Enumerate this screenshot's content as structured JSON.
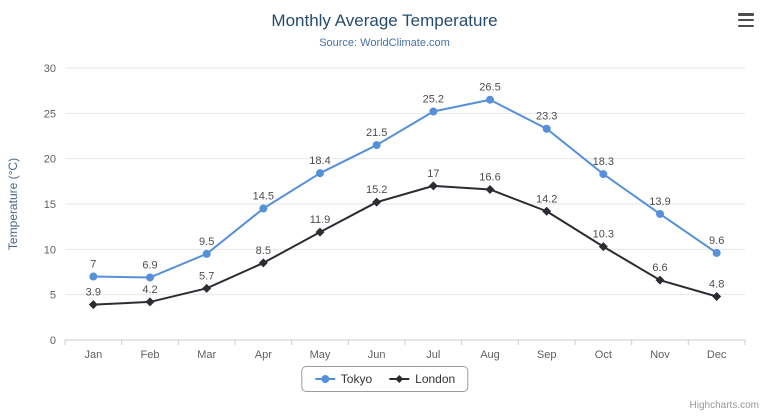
{
  "chart_data": {
    "type": "line",
    "title": "Monthly Average Temperature",
    "subtitle": "Source: WorldClimate.com",
    "categories": [
      "Jan",
      "Feb",
      "Mar",
      "Apr",
      "May",
      "Jun",
      "Jul",
      "Aug",
      "Sep",
      "Oct",
      "Nov",
      "Dec"
    ],
    "series": [
      {
        "name": "Tokyo",
        "color": "#5590d9",
        "marker": "circle",
        "values": [
          7,
          6.9,
          9.5,
          14.5,
          18.4,
          21.5,
          25.2,
          26.5,
          23.3,
          18.3,
          13.9,
          9.6
        ]
      },
      {
        "name": "London",
        "color": "#2b2d33",
        "marker": "diamond",
        "values": [
          3.9,
          4.2,
          5.7,
          8.5,
          11.9,
          15.2,
          17,
          16.6,
          14.2,
          10.3,
          6.6,
          4.8
        ]
      }
    ],
    "xlabel": "",
    "ylabel": "Temperature (°C)",
    "ylim": [
      0,
      30
    ],
    "ytick_interval": 5,
    "grid": true,
    "legend_position": "bottom",
    "data_labels": true
  },
  "colors": {
    "title": "#274b6d",
    "subtitle": "#4572a7",
    "axis_label": "#606060",
    "axis_title": "#4a6785",
    "grid_line": "#e6e6e6",
    "axis_line": "#c8ccd4",
    "data_label": "#4d4d4d"
  },
  "icons": {
    "context_menu": "hamburger-menu-icon"
  },
  "credits": "Highcharts.com"
}
